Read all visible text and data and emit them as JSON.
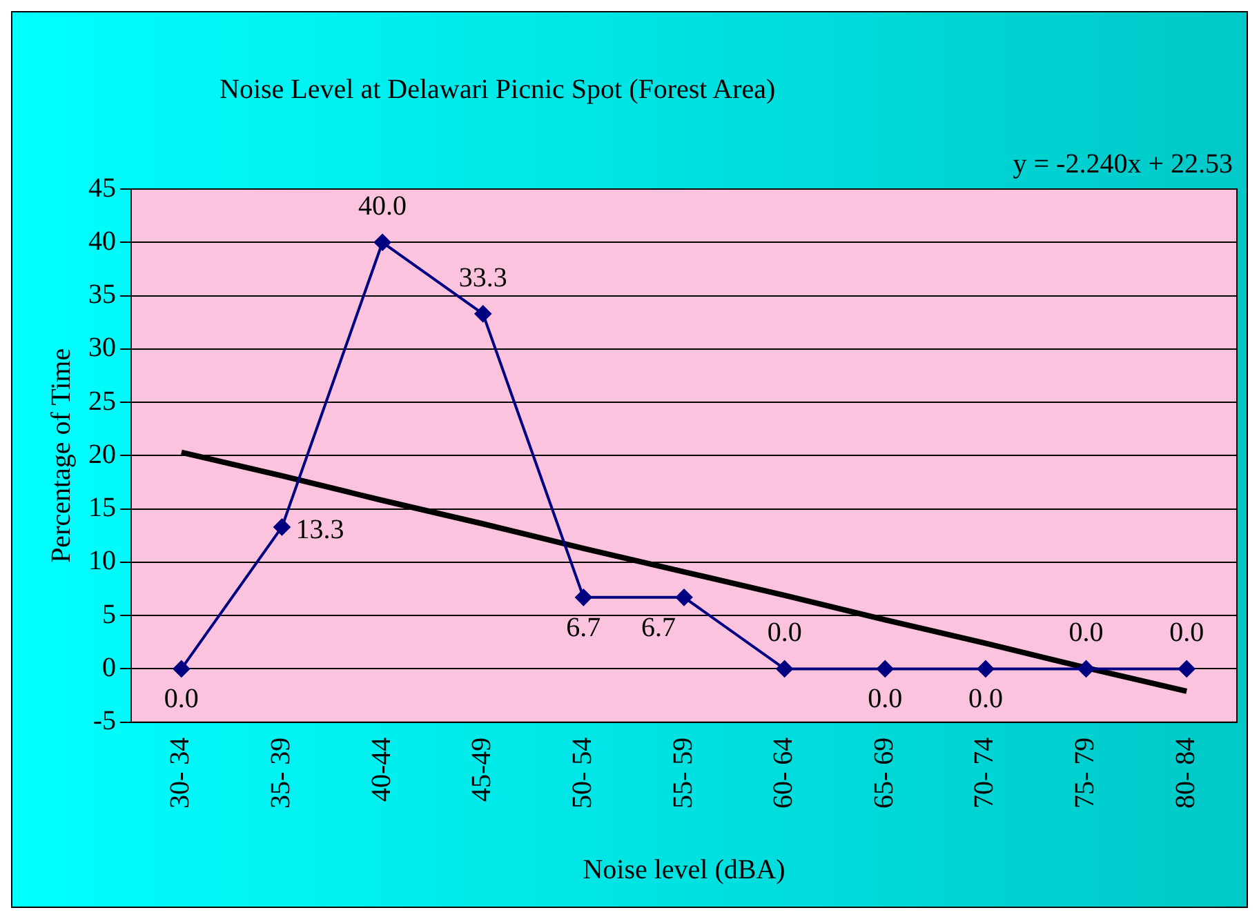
{
  "chart_data": {
    "type": "line",
    "title": "Noise Level at Delawari Picnic Spot (Forest Area)",
    "xlabel": "Noise level (dBA)",
    "ylabel": "Percentage of Time",
    "categories": [
      "30- 34",
      "35- 39",
      "40-44",
      "45-49",
      "50- 54",
      "55- 59",
      "60- 64",
      "65- 69",
      "70- 74",
      "75- 79",
      "80- 84"
    ],
    "series": [
      {
        "color": "#000080",
        "values": [
          0,
          13.3,
          40,
          33.3,
          6.7,
          6.7,
          0,
          0,
          0,
          0,
          0
        ],
        "value_labels": [
          "0.0",
          "13.3",
          "40.0",
          "33.3",
          "6.7",
          "6.7",
          "0.0",
          "0.0",
          "0.0",
          "0.0",
          "0.0"
        ],
        "marker": "diamond"
      },
      {
        "color": "#000000",
        "values": [
          20.3,
          18.1,
          15.8,
          13.6,
          11.3,
          9.1,
          6.9,
          4.6,
          2.4,
          0.1,
          -2.1
        ],
        "marker": "none"
      }
    ],
    "annotations": [
      "y = -2.240x + 22.53"
    ],
    "ylim": [
      -5,
      45
    ],
    "yticks": [
      -5,
      0,
      5,
      10,
      15,
      20,
      25,
      30,
      35,
      40,
      45
    ],
    "grid": "y",
    "legend": false
  }
}
